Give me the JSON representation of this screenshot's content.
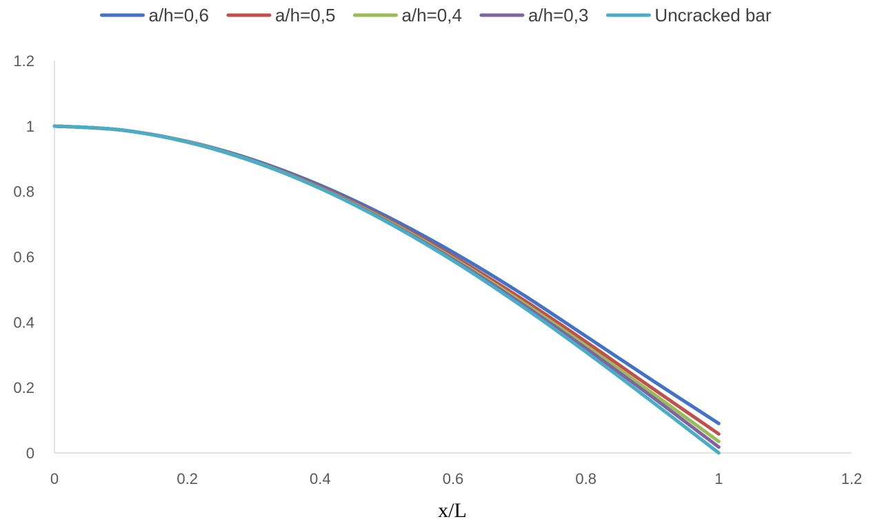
{
  "chart_data": {
    "type": "line",
    "title": "",
    "xlabel": "x/L",
    "ylabel": "",
    "xlim": [
      0,
      1.2
    ],
    "ylim": [
      0,
      1.2
    ],
    "x_ticks": [
      0,
      0.2,
      0.4,
      0.6,
      0.8,
      1,
      1.2
    ],
    "y_ticks": [
      0,
      0.2,
      0.4,
      0.6,
      0.8,
      1,
      1.2
    ],
    "x_tick_labels": [
      "0",
      "0.2",
      "0.4",
      "0.6",
      "0.8",
      "1",
      "1.2"
    ],
    "y_tick_labels": [
      "0",
      "0.2",
      "0.4",
      "0.6",
      "0.8",
      "1",
      "1.2"
    ],
    "grid": false,
    "legend_position": "top",
    "x": [
      0,
      0.1,
      0.2,
      0.3,
      0.4,
      0.5,
      0.6,
      0.7,
      0.8,
      0.9,
      1.0
    ],
    "series": [
      {
        "name": "a/h=0,6",
        "color": "#4472C4",
        "values": [
          1,
          0.988,
          0.953,
          0.896,
          0.819,
          0.724,
          0.614,
          0.491,
          0.357,
          0.222,
          0.09
        ]
      },
      {
        "name": "a/h=0,5",
        "color": "#C0504D",
        "values": [
          1,
          0.988,
          0.952,
          0.893,
          0.814,
          0.716,
          0.602,
          0.476,
          0.34,
          0.198,
          0.058
        ]
      },
      {
        "name": "a/h=0,4",
        "color": "#9BBB59",
        "values": [
          1,
          0.988,
          0.952,
          0.892,
          0.811,
          0.712,
          0.596,
          0.467,
          0.328,
          0.183,
          0.035
        ]
      },
      {
        "name": "a/h=0,3",
        "color": "#8064A2",
        "values": [
          1,
          0.988,
          0.951,
          0.891,
          0.81,
          0.709,
          0.592,
          0.461,
          0.32,
          0.171,
          0.018
        ]
      },
      {
        "name": "Uncracked bar",
        "color": "#4BACC6",
        "values": [
          1,
          0.988,
          0.951,
          0.891,
          0.809,
          0.707,
          0.588,
          0.454,
          0.309,
          0.156,
          0.0
        ]
      }
    ]
  }
}
